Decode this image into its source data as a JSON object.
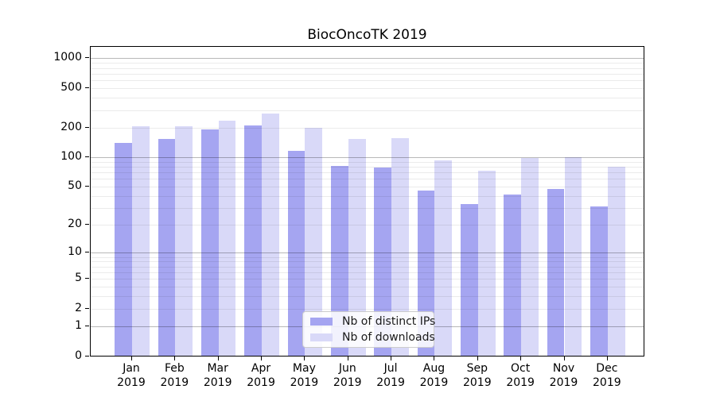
{
  "window": {
    "title": "BiocOncoTK 2019"
  },
  "chart_data": {
    "type": "bar",
    "title": "BiocOncoTK 2019",
    "categories": [
      "Jan 2019",
      "Feb 2019",
      "Mar 2019",
      "Apr 2019",
      "May 2019",
      "Jun 2019",
      "Jul 2019",
      "Aug 2019",
      "Sep 2019",
      "Oct 2019",
      "Nov 2019",
      "Dec 2019"
    ],
    "series": [
      {
        "name": "Nb of distinct IPs",
        "color": "#a5a5f1",
        "values": [
          134,
          148,
          186,
          201,
          112,
          79,
          76,
          44,
          32,
          40,
          46,
          30
        ]
      },
      {
        "name": "Nb of downloads",
        "color": "#d9d9f8",
        "values": [
          198,
          197,
          228,
          268,
          191,
          148,
          151,
          89,
          70,
          95,
          97,
          77
        ]
      }
    ],
    "xlabel": "",
    "ylabel": "",
    "yscale": "log10(1+v)",
    "y_ticks": [
      1000,
      500,
      200,
      100,
      50,
      20,
      10,
      5,
      2,
      1,
      0
    ],
    "ylim": [
      0,
      1300
    ],
    "grid": "on",
    "legend": {
      "position": "inside-bottom-center",
      "entries": [
        "Nb of distinct IPs",
        "Nb of downloads"
      ]
    }
  },
  "colors": {
    "bar_distinct_ips": "#a5a5f1",
    "bar_downloads": "#d9d9f8",
    "major_grid": "#bdbdbd",
    "minor_grid": "#e8e8e8",
    "axis": "#000000",
    "background": "#ffffff"
  }
}
